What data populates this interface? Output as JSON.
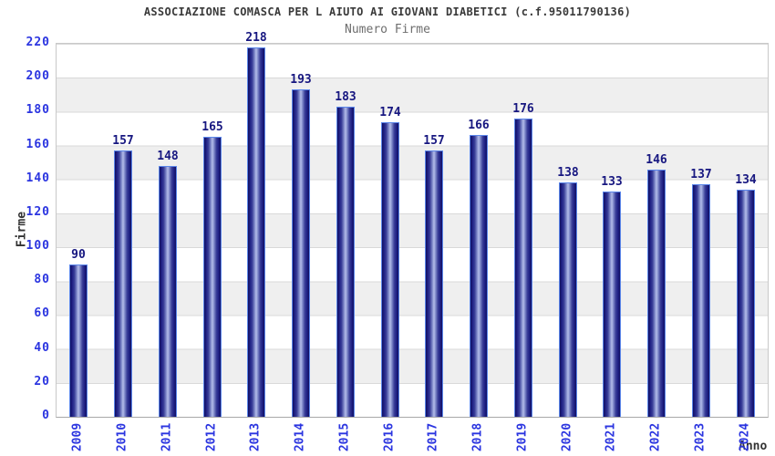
{
  "chart_data": {
    "type": "bar",
    "title": "ASSOCIAZIONE COMASCA PER L AIUTO AI GIOVANI DIABETICI (c.f.95011790136)",
    "subtitle": "Numero Firme",
    "xlabel": "Anno",
    "ylabel": "Firme",
    "categories": [
      "2009",
      "2010",
      "2011",
      "2012",
      "2013",
      "2014",
      "2015",
      "2016",
      "2017",
      "2018",
      "2019",
      "2020",
      "2021",
      "2022",
      "2023",
      "2024"
    ],
    "values": [
      90,
      157,
      148,
      165,
      218,
      193,
      183,
      174,
      157,
      166,
      176,
      138,
      133,
      146,
      137,
      134
    ],
    "ylim": [
      0,
      220
    ],
    "ytick_step": 20,
    "grid": true,
    "legend_position": "none",
    "colors": {
      "tick_label_blue": "#2b35e0",
      "value_label_navy": "#171780",
      "bar_dark": "#1b1b80",
      "bar_highlight": "#b4bdea",
      "bar_border": "#5b86ea",
      "band_gray": "#efefef",
      "gridline": "#d9d9d9",
      "title_text": "#3a3a3a",
      "subtitle_text": "#6e6e6e"
    }
  }
}
